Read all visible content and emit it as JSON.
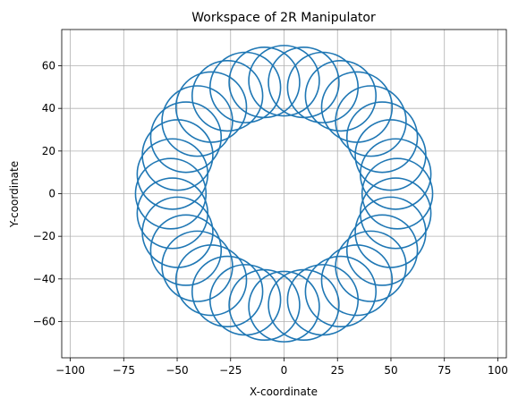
{
  "chart_data": {
    "type": "line",
    "title": "Workspace of 2R Manipulator",
    "xlabel": "X-coordinate",
    "ylabel": "Y-coordinate",
    "xlim": [
      -104,
      104
    ],
    "ylim": [
      -77,
      77
    ],
    "xticks": [
      -100,
      -75,
      -50,
      -25,
      0,
      25,
      50,
      75,
      100
    ],
    "yticks": [
      -60,
      -40,
      -20,
      0,
      20,
      40,
      60
    ],
    "grid": true,
    "series": [
      {
        "shape": "circles",
        "link1_length": 53,
        "link2_length": 16.5,
        "circle_count": 36,
        "color": "#1f77b4"
      }
    ]
  }
}
